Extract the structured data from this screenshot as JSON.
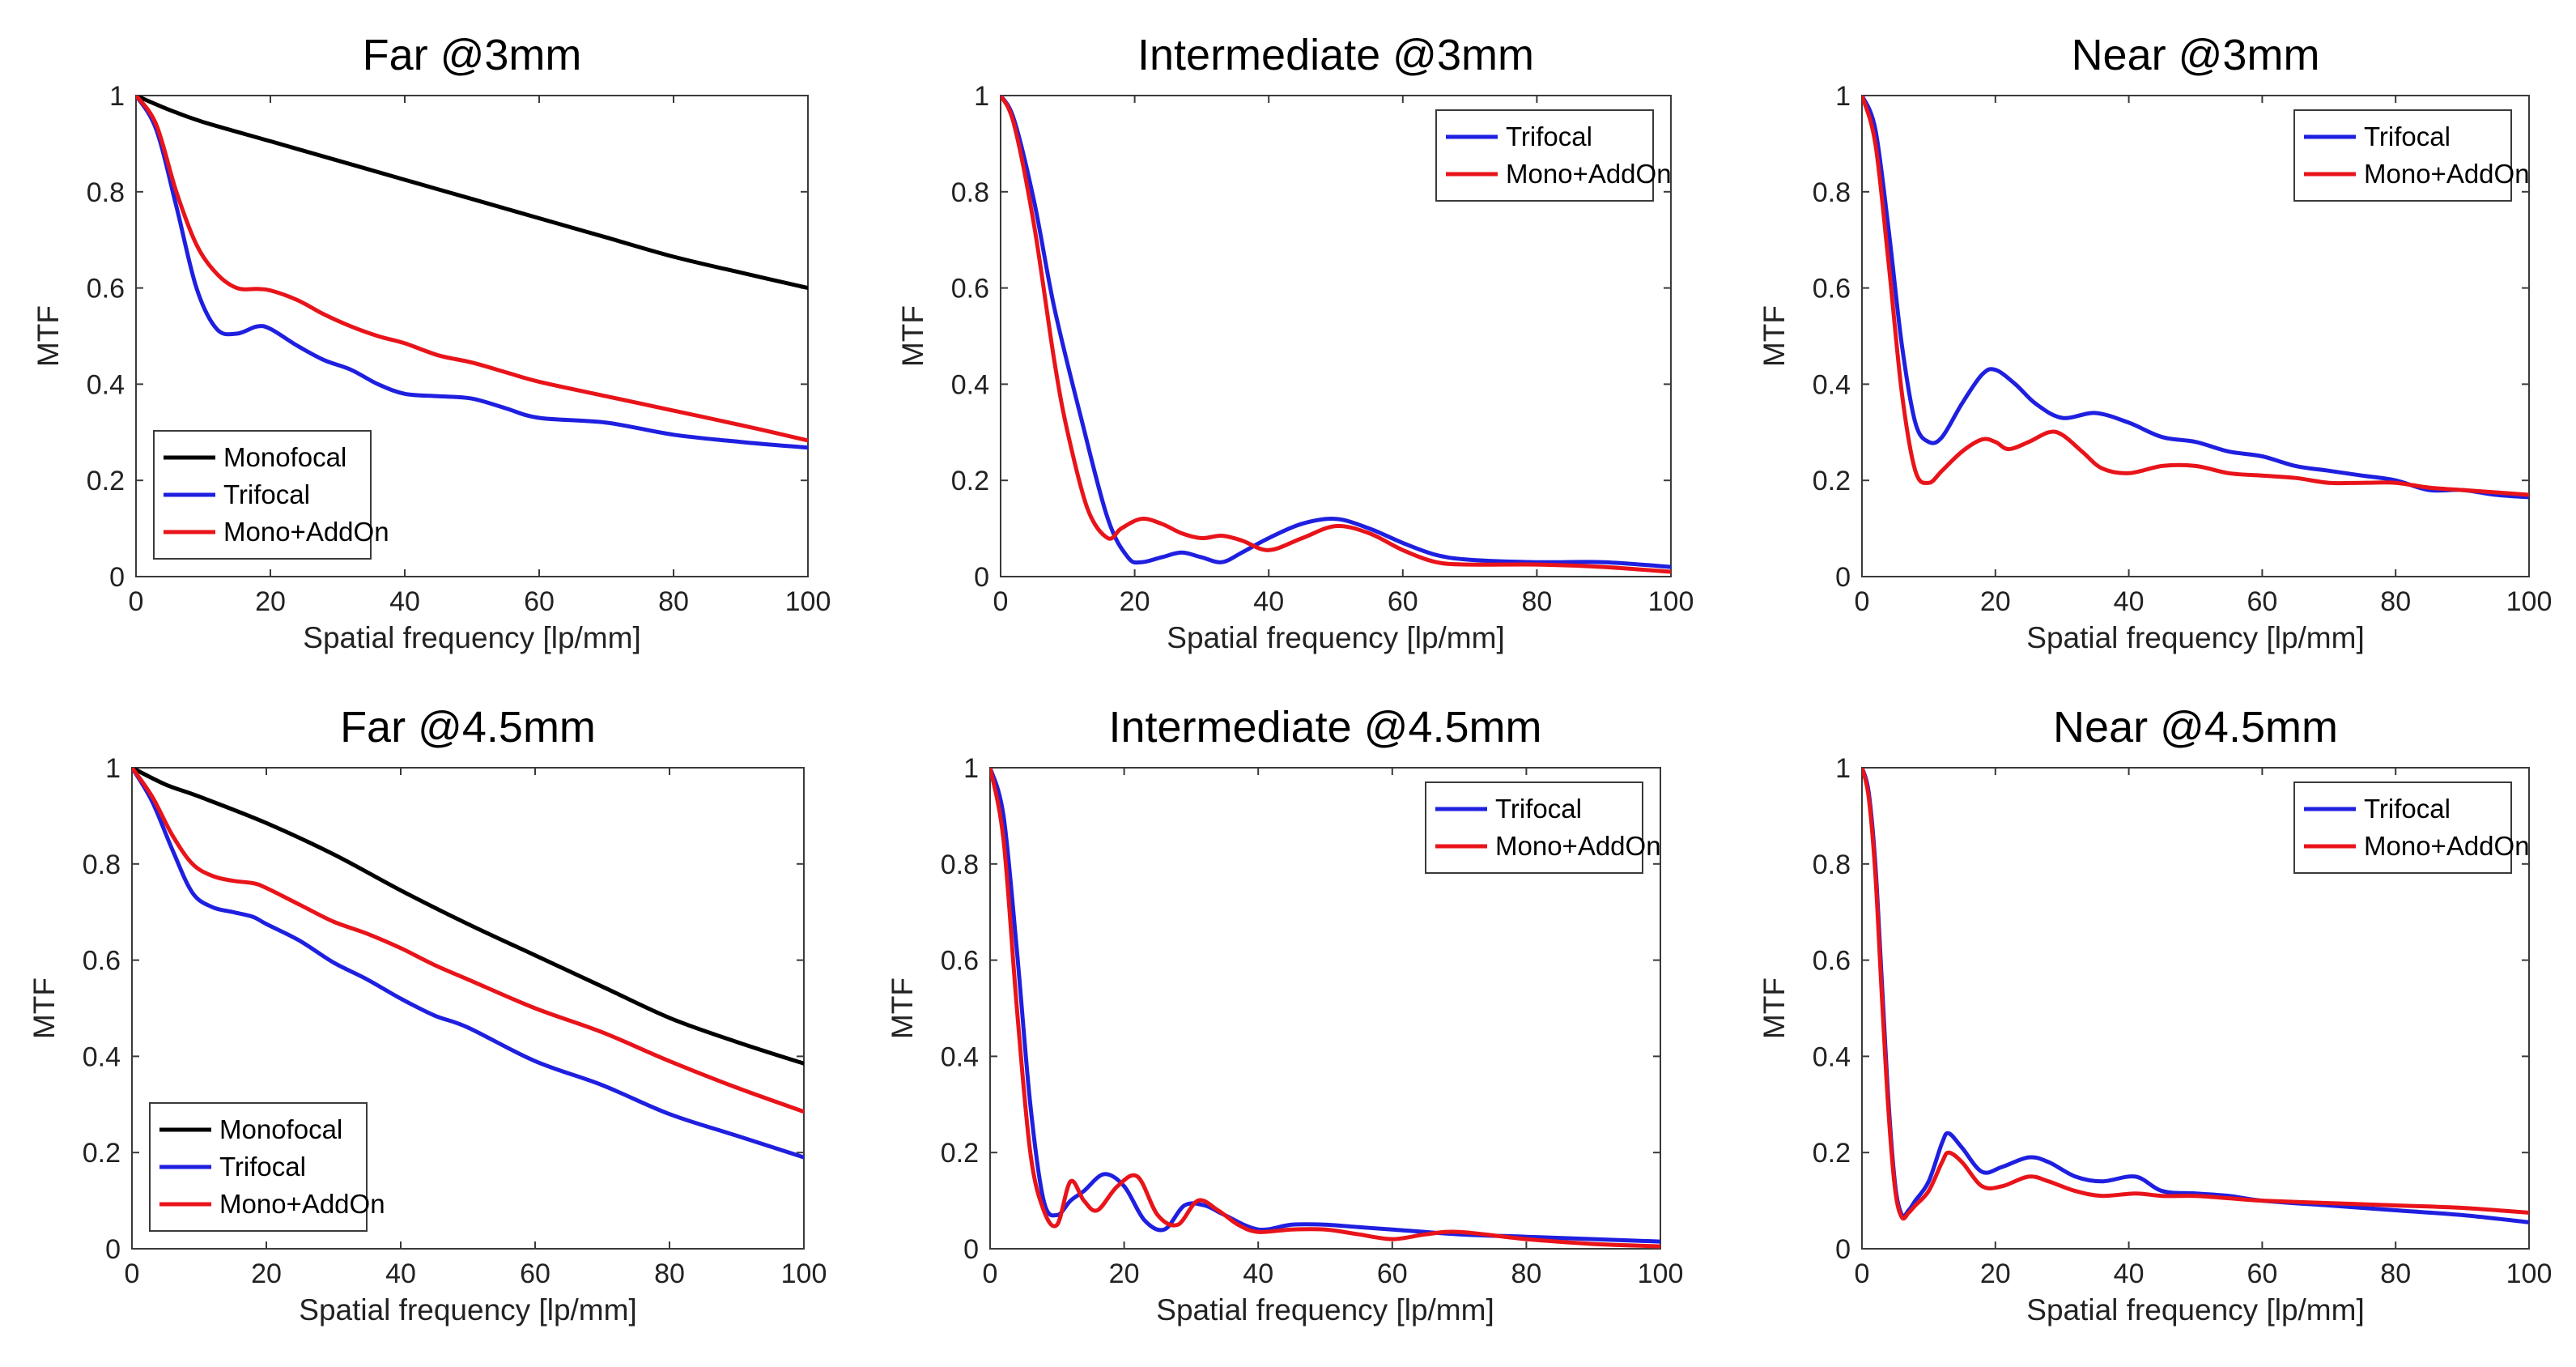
{
  "colors": {
    "Monofocal": "#000000",
    "Trifocal": "#1f1fe0",
    "Mono+AddOn": "#e8141a"
  },
  "chart_data": [
    {
      "type": "line",
      "title": "Far @3mm",
      "xlabel": "Spatial frequency [lp/mm]",
      "ylabel": "MTF",
      "xlim": [
        0,
        100
      ],
      "ylim": [
        0,
        1
      ],
      "xticks": [
        "0",
        "20",
        "40",
        "60",
        "80",
        "100"
      ],
      "yticks": [
        "0",
        "0.2",
        "0.4",
        "0.6",
        "0.8",
        "1"
      ],
      "legend": "bottom-left",
      "grid": false,
      "series": [
        {
          "name": "Monofocal",
          "x": [
            0,
            5,
            10,
            20,
            30,
            40,
            50,
            60,
            70,
            80,
            90,
            100
          ],
          "values": [
            1.0,
            0.97,
            0.945,
            0.905,
            0.865,
            0.825,
            0.785,
            0.745,
            0.705,
            0.665,
            0.632,
            0.6
          ]
        },
        {
          "name": "Trifocal",
          "x": [
            0,
            3,
            6,
            9,
            12,
            15,
            18,
            20,
            24,
            28,
            32,
            36,
            40,
            45,
            50,
            55,
            60,
            70,
            80,
            90,
            100
          ],
          "values": [
            1.0,
            0.93,
            0.77,
            0.6,
            0.515,
            0.505,
            0.52,
            0.515,
            0.48,
            0.45,
            0.43,
            0.4,
            0.38,
            0.375,
            0.37,
            0.35,
            0.33,
            0.32,
            0.295,
            0.28,
            0.268
          ]
        },
        {
          "name": "Mono+AddOn",
          "x": [
            0,
            3,
            6,
            9,
            12,
            15,
            18,
            20,
            24,
            28,
            32,
            36,
            40,
            45,
            50,
            55,
            60,
            70,
            80,
            90,
            100
          ],
          "values": [
            1.0,
            0.94,
            0.8,
            0.69,
            0.63,
            0.6,
            0.598,
            0.595,
            0.575,
            0.545,
            0.52,
            0.5,
            0.485,
            0.46,
            0.445,
            0.425,
            0.405,
            0.375,
            0.345,
            0.315,
            0.283
          ]
        }
      ]
    },
    {
      "type": "line",
      "title": "Intermediate @3mm",
      "xlabel": "Spatial frequency [lp/mm]",
      "ylabel": "MTF",
      "xlim": [
        0,
        100
      ],
      "ylim": [
        0,
        1
      ],
      "xticks": [
        "0",
        "20",
        "40",
        "60",
        "80",
        "100"
      ],
      "yticks": [
        "0",
        "0.2",
        "0.4",
        "0.6",
        "0.8",
        "1"
      ],
      "legend": "top-right",
      "grid": false,
      "series": [
        {
          "name": "Trifocal",
          "x": [
            0,
            2,
            5,
            8,
            12,
            16,
            19,
            21,
            24,
            27,
            30,
            33,
            36,
            40,
            45,
            50,
            55,
            60,
            65,
            70,
            80,
            90,
            100
          ],
          "values": [
            1.0,
            0.95,
            0.78,
            0.56,
            0.33,
            0.12,
            0.04,
            0.03,
            0.04,
            0.05,
            0.04,
            0.03,
            0.05,
            0.08,
            0.11,
            0.12,
            0.1,
            0.07,
            0.045,
            0.035,
            0.03,
            0.03,
            0.02
          ]
        },
        {
          "name": "Mono+AddOn",
          "x": [
            0,
            2,
            5,
            8,
            10,
            13,
            16,
            18,
            21,
            24,
            27,
            30,
            33,
            36,
            40,
            45,
            50,
            55,
            60,
            65,
            70,
            80,
            90,
            100
          ],
          "values": [
            1.0,
            0.94,
            0.73,
            0.45,
            0.3,
            0.14,
            0.08,
            0.1,
            0.12,
            0.11,
            0.09,
            0.08,
            0.085,
            0.075,
            0.055,
            0.08,
            0.105,
            0.09,
            0.055,
            0.03,
            0.025,
            0.025,
            0.02,
            0.01
          ]
        }
      ]
    },
    {
      "type": "line",
      "title": "Near @3mm",
      "xlabel": "Spatial frequency [lp/mm]",
      "ylabel": "MTF",
      "xlim": [
        0,
        100
      ],
      "ylim": [
        0,
        1
      ],
      "xticks": [
        "0",
        "20",
        "40",
        "60",
        "80",
        "100"
      ],
      "yticks": [
        "0",
        "0.2",
        "0.4",
        "0.6",
        "0.8",
        "1"
      ],
      "legend": "top-right",
      "grid": false,
      "series": [
        {
          "name": "Trifocal",
          "x": [
            0,
            2,
            4,
            6,
            8,
            10,
            12,
            15,
            18,
            20,
            23,
            26,
            30,
            35,
            40,
            45,
            50,
            55,
            60,
            65,
            70,
            75,
            80,
            85,
            90,
            95,
            100
          ],
          "values": [
            1.0,
            0.93,
            0.72,
            0.48,
            0.32,
            0.28,
            0.29,
            0.36,
            0.42,
            0.43,
            0.4,
            0.36,
            0.33,
            0.34,
            0.32,
            0.29,
            0.28,
            0.26,
            0.25,
            0.23,
            0.22,
            0.21,
            0.2,
            0.18,
            0.18,
            0.17,
            0.165
          ]
        },
        {
          "name": "Mono+AddOn",
          "x": [
            0,
            2,
            4,
            6,
            8,
            10,
            12,
            15,
            18,
            20,
            22,
            25,
            28,
            30,
            33,
            36,
            40,
            45,
            50,
            55,
            60,
            65,
            70,
            75,
            80,
            85,
            90,
            95,
            100
          ],
          "values": [
            1.0,
            0.9,
            0.65,
            0.38,
            0.22,
            0.195,
            0.22,
            0.26,
            0.285,
            0.28,
            0.265,
            0.28,
            0.3,
            0.295,
            0.26,
            0.225,
            0.215,
            0.23,
            0.23,
            0.215,
            0.21,
            0.205,
            0.195,
            0.195,
            0.195,
            0.185,
            0.18,
            0.175,
            0.17
          ]
        }
      ]
    },
    {
      "type": "line",
      "title": "Far @4.5mm",
      "xlabel": "Spatial frequency [lp/mm]",
      "ylabel": "MTF",
      "xlim": [
        0,
        100
      ],
      "ylim": [
        0,
        1
      ],
      "xticks": [
        "0",
        "20",
        "40",
        "60",
        "80",
        "100"
      ],
      "yticks": [
        "0",
        "0.2",
        "0.4",
        "0.6",
        "0.8",
        "1"
      ],
      "legend": "bottom-left",
      "grid": false,
      "series": [
        {
          "name": "Monofocal",
          "x": [
            0,
            5,
            10,
            20,
            30,
            40,
            50,
            60,
            70,
            80,
            90,
            100
          ],
          "values": [
            1.0,
            0.965,
            0.94,
            0.885,
            0.82,
            0.745,
            0.675,
            0.61,
            0.545,
            0.48,
            0.43,
            0.385
          ]
        },
        {
          "name": "Trifocal",
          "x": [
            0,
            3,
            6,
            9,
            12,
            15,
            18,
            20,
            25,
            30,
            35,
            40,
            45,
            50,
            60,
            70,
            80,
            90,
            100
          ],
          "values": [
            1.0,
            0.93,
            0.83,
            0.74,
            0.71,
            0.7,
            0.69,
            0.675,
            0.64,
            0.595,
            0.56,
            0.52,
            0.485,
            0.46,
            0.39,
            0.34,
            0.28,
            0.235,
            0.19
          ]
        },
        {
          "name": "Mono+AddOn",
          "x": [
            0,
            3,
            6,
            9,
            12,
            15,
            18,
            20,
            25,
            30,
            35,
            40,
            45,
            50,
            60,
            70,
            80,
            90,
            100
          ],
          "values": [
            1.0,
            0.94,
            0.86,
            0.8,
            0.775,
            0.765,
            0.76,
            0.75,
            0.715,
            0.68,
            0.655,
            0.625,
            0.59,
            0.56,
            0.5,
            0.45,
            0.39,
            0.335,
            0.285
          ]
        }
      ]
    },
    {
      "type": "line",
      "title": "Intermediate @4.5mm",
      "xlabel": "Spatial frequency [lp/mm]",
      "ylabel": "MTF",
      "xlim": [
        0,
        100
      ],
      "ylim": [
        0,
        1
      ],
      "xticks": [
        "0",
        "20",
        "40",
        "60",
        "80",
        "100"
      ],
      "yticks": [
        "0",
        "0.2",
        "0.4",
        "0.6",
        "0.8",
        "1"
      ],
      "legend": "top-right",
      "grid": false,
      "series": [
        {
          "name": "Trifocal",
          "x": [
            0,
            2,
            4,
            6,
            8,
            10,
            12,
            14,
            17,
            20,
            23,
            26,
            29,
            32,
            35,
            40,
            45,
            50,
            55,
            60,
            70,
            80,
            90,
            100
          ],
          "values": [
            1.0,
            0.9,
            0.62,
            0.3,
            0.1,
            0.07,
            0.1,
            0.12,
            0.155,
            0.13,
            0.06,
            0.04,
            0.09,
            0.09,
            0.07,
            0.04,
            0.05,
            0.05,
            0.045,
            0.04,
            0.03,
            0.025,
            0.02,
            0.015
          ]
        },
        {
          "name": "Mono+AddOn",
          "x": [
            0,
            2,
            4,
            6,
            8,
            10,
            12,
            14,
            16,
            19,
            22,
            25,
            28,
            31,
            34,
            37,
            40,
            45,
            50,
            55,
            60,
            65,
            70,
            80,
            90,
            100
          ],
          "values": [
            1.0,
            0.85,
            0.5,
            0.2,
            0.08,
            0.05,
            0.14,
            0.1,
            0.08,
            0.13,
            0.15,
            0.07,
            0.05,
            0.1,
            0.08,
            0.05,
            0.035,
            0.04,
            0.04,
            0.03,
            0.02,
            0.03,
            0.035,
            0.02,
            0.01,
            0.005
          ]
        }
      ]
    },
    {
      "type": "line",
      "title": "Near @4.5mm",
      "xlabel": "Spatial frequency [lp/mm]",
      "ylabel": "MTF",
      "xlim": [
        0,
        100
      ],
      "ylim": [
        0,
        1
      ],
      "xticks": [
        "0",
        "20",
        "40",
        "60",
        "80",
        "100"
      ],
      "yticks": [
        "0",
        "0.2",
        "0.4",
        "0.6",
        "0.8",
        "1"
      ],
      "legend": "top-right",
      "grid": false,
      "series": [
        {
          "name": "Trifocal",
          "x": [
            0,
            1,
            2,
            3,
            4,
            5,
            6,
            7,
            8,
            10,
            12,
            13,
            15,
            18,
            21,
            25,
            28,
            32,
            36,
            41,
            45,
            50,
            55,
            60,
            70,
            80,
            90,
            100
          ],
          "values": [
            1.0,
            0.95,
            0.8,
            0.55,
            0.3,
            0.13,
            0.07,
            0.08,
            0.1,
            0.14,
            0.22,
            0.24,
            0.21,
            0.16,
            0.17,
            0.19,
            0.18,
            0.15,
            0.14,
            0.15,
            0.12,
            0.115,
            0.11,
            0.1,
            0.09,
            0.08,
            0.07,
            0.055
          ]
        },
        {
          "name": "Mono+AddOn",
          "x": [
            0,
            1,
            2,
            3,
            4,
            5,
            6,
            7,
            8,
            10,
            12,
            13,
            15,
            18,
            21,
            25,
            28,
            32,
            36,
            41,
            45,
            50,
            55,
            60,
            70,
            80,
            90,
            100
          ],
          "values": [
            1.0,
            0.94,
            0.78,
            0.52,
            0.28,
            0.12,
            0.065,
            0.075,
            0.09,
            0.12,
            0.18,
            0.2,
            0.18,
            0.13,
            0.13,
            0.15,
            0.14,
            0.12,
            0.11,
            0.115,
            0.11,
            0.11,
            0.105,
            0.1,
            0.095,
            0.09,
            0.085,
            0.075
          ]
        }
      ]
    }
  ]
}
